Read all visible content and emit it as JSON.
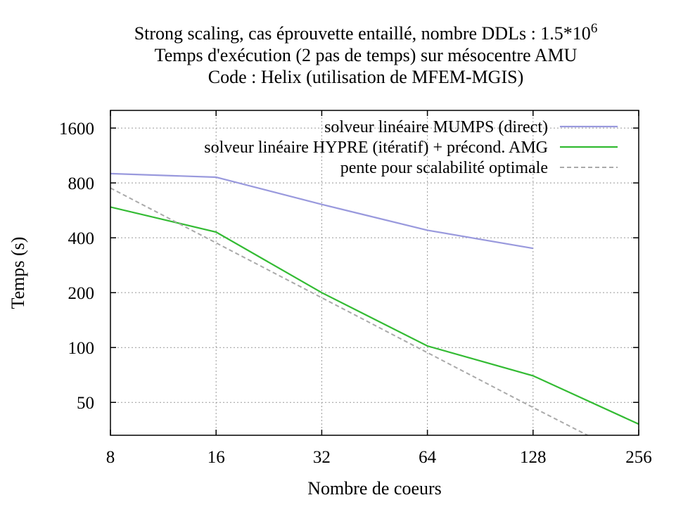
{
  "chart_data": {
    "type": "line",
    "title_lines": [
      "Strong scaling, cas éprouvette entaillé, nombre DDLs : 1.5*10",
      "Temps d'exécution (2 pas de temps) sur mésocentre AMU",
      "Code : Helix (utilisation de MFEM-MGIS)"
    ],
    "title_superscript": "6",
    "xlabel": "Nombre de coeurs",
    "ylabel": "Temps (s)",
    "x_scale": "log2",
    "y_scale": "log2",
    "xlim": [
      8,
      256
    ],
    "ylim": [
      33,
      2000
    ],
    "x_ticks": [
      8,
      16,
      32,
      64,
      128,
      256
    ],
    "y_ticks": [
      50,
      100,
      200,
      400,
      800,
      1600
    ],
    "grid": true,
    "legend_position": "top-right",
    "series": [
      {
        "name": "solveur linéaire MUMPS (direct)",
        "color": "#9999dd",
        "style": "solid",
        "points": [
          [
            8,
            900
          ],
          [
            16,
            860
          ],
          [
            32,
            610
          ],
          [
            64,
            440
          ],
          [
            128,
            350
          ]
        ]
      },
      {
        "name": "solveur linéaire HYPRE (itératif) + précond. AMG",
        "color": "#33bb33",
        "style": "solid",
        "points": [
          [
            8,
            590
          ],
          [
            16,
            430
          ],
          [
            32,
            200
          ],
          [
            64,
            102
          ],
          [
            128,
            70
          ],
          [
            256,
            38
          ]
        ]
      },
      {
        "name": "pente pour scalabilité optimale",
        "color": "#aaaaaa",
        "style": "dashed",
        "points": [
          [
            8,
            750
          ],
          [
            16,
            375
          ],
          [
            32,
            187.5
          ],
          [
            64,
            93.75
          ],
          [
            128,
            46.875
          ],
          [
            195,
            31
          ]
        ]
      }
    ]
  }
}
